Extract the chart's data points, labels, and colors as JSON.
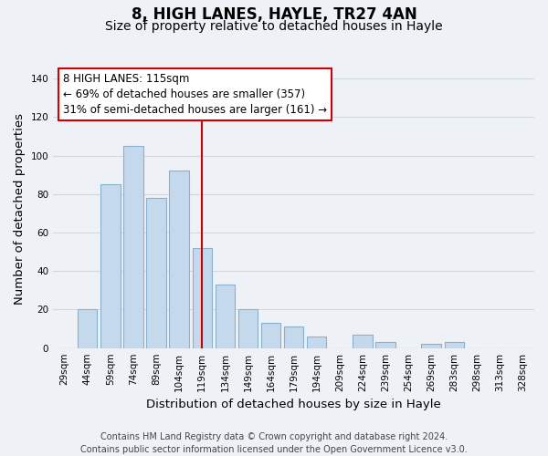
{
  "title": "8, HIGH LANES, HAYLE, TR27 4AN",
  "subtitle": "Size of property relative to detached houses in Hayle",
  "xlabel": "Distribution of detached houses by size in Hayle",
  "ylabel": "Number of detached properties",
  "bar_labels": [
    "29sqm",
    "44sqm",
    "59sqm",
    "74sqm",
    "89sqm",
    "104sqm",
    "119sqm",
    "134sqm",
    "149sqm",
    "164sqm",
    "179sqm",
    "194sqm",
    "209sqm",
    "224sqm",
    "239sqm",
    "254sqm",
    "269sqm",
    "283sqm",
    "298sqm",
    "313sqm",
    "328sqm"
  ],
  "bar_values": [
    0,
    20,
    85,
    105,
    78,
    92,
    52,
    33,
    20,
    13,
    11,
    6,
    0,
    7,
    3,
    0,
    2,
    3,
    0,
    0,
    0
  ],
  "bar_color": "#c5d9ec",
  "bar_edge_color": "#8ab0cc",
  "vline_x_index": 6,
  "vline_color": "#cc0000",
  "ylim": [
    0,
    145
  ],
  "yticks": [
    0,
    20,
    40,
    60,
    80,
    100,
    120,
    140
  ],
  "annotation_text": "8 HIGH LANES: 115sqm\n← 69% of detached houses are smaller (357)\n31% of semi-detached houses are larger (161) →",
  "annotation_box_facecolor": "#ffffff",
  "annotation_box_edgecolor": "#cc0000",
  "footer_line1": "Contains HM Land Registry data © Crown copyright and database right 2024.",
  "footer_line2": "Contains public sector information licensed under the Open Government Licence v3.0.",
  "background_color": "#eef2f7",
  "grid_color": "#d0d8e4",
  "title_fontsize": 12,
  "subtitle_fontsize": 10,
  "axis_label_fontsize": 9.5,
  "tick_fontsize": 7.5,
  "annotation_fontsize": 8.5,
  "footer_fontsize": 7
}
